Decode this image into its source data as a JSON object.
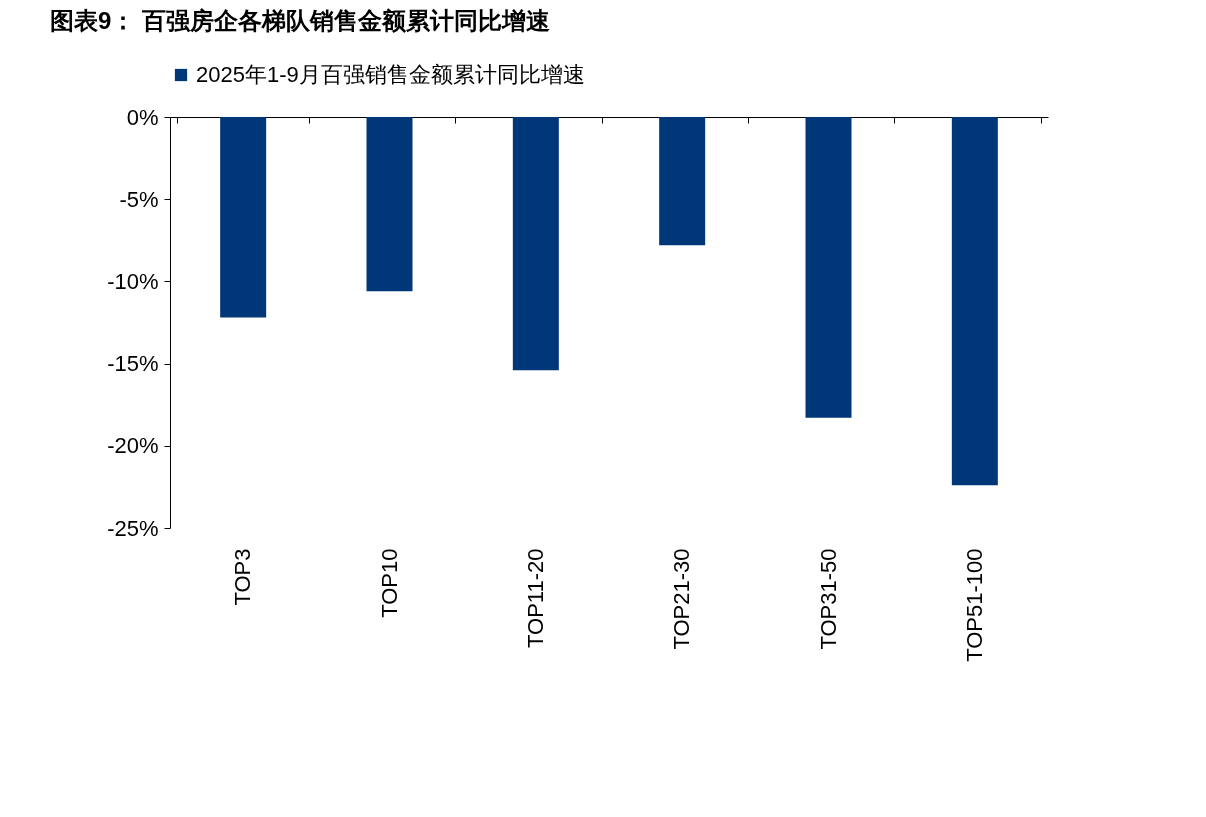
{
  "chart_data": {
    "type": "bar",
    "title": "图表9：  百强房企各梯队销售金额累计同比增速",
    "categories": [
      "TOP3",
      "TOP10",
      "TOP11-20",
      "TOP21-30",
      "TOP31-50",
      "TOP51-100"
    ],
    "series": [
      {
        "name": "2025年1-9月百强销售金额累计同比增速",
        "color": "#003778",
        "values": [
          -12.2,
          -10.6,
          -15.4,
          -7.8,
          -18.3,
          -22.4
        ]
      }
    ],
    "ylim": [
      -25,
      0
    ],
    "yticks": [
      {
        "value": 0,
        "label": "0%"
      },
      {
        "value": -5,
        "label": "-5%"
      },
      {
        "value": -10,
        "label": "-10%"
      },
      {
        "value": -15,
        "label": "-15%"
      },
      {
        "value": -20,
        "label": "-20%"
      },
      {
        "value": -25,
        "label": "-25%"
      }
    ],
    "legend": "top",
    "grid": false
  }
}
